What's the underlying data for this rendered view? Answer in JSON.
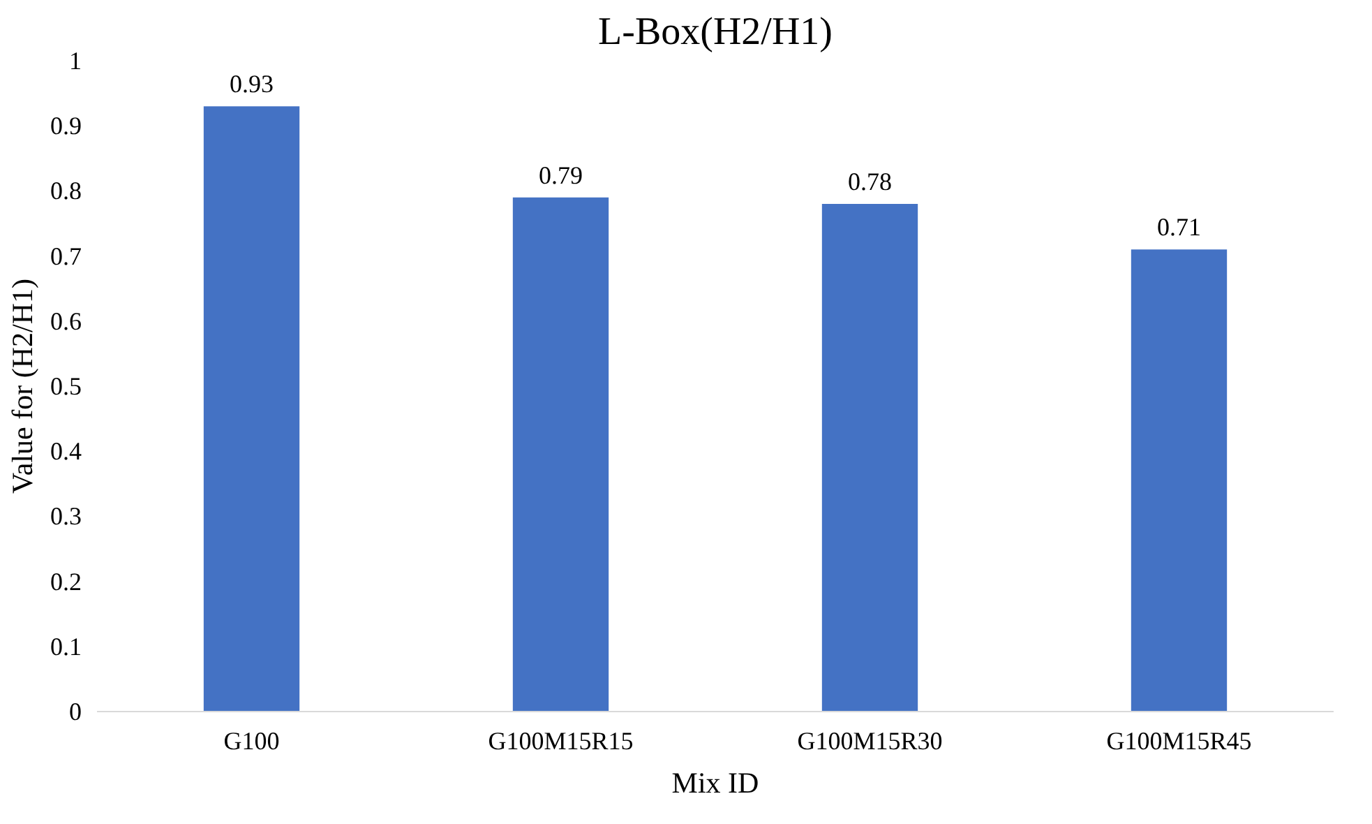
{
  "chart_data": {
    "type": "bar",
    "title": "L-Box(H2/H1)",
    "xlabel": "Mix ID",
    "ylabel": "Value for (H2/H1)",
    "categories": [
      "G100",
      "G100M15R15",
      "G100M15R30",
      "G100M15R45"
    ],
    "values": [
      0.93,
      0.79,
      0.78,
      0.71
    ],
    "color": "#4472c4",
    "ylim": [
      0,
      1
    ],
    "yticks": [
      0,
      0.1,
      0.2,
      0.3,
      0.4,
      0.5,
      0.6,
      0.7,
      0.8,
      0.9,
      1
    ],
    "data_labels": true,
    "grid": false
  }
}
